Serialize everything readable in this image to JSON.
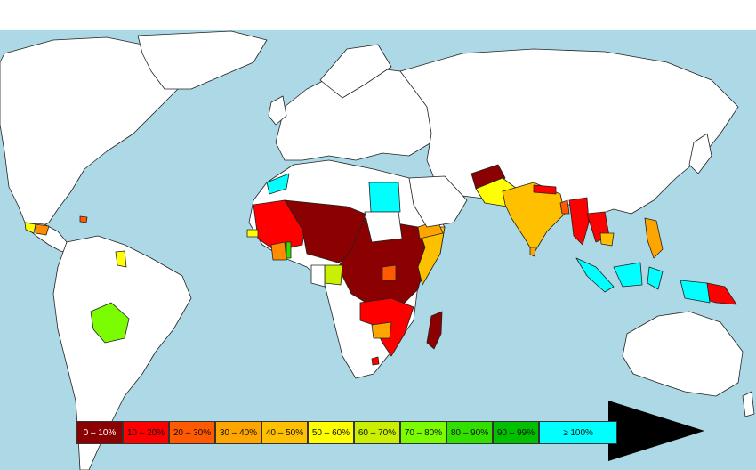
{
  "map": {
    "ocean_color": "#add8e6",
    "land_color": "#ffffff",
    "border_color": "#222222"
  },
  "legend": {
    "items": [
      {
        "label": "0 – 10%",
        "color": "#8b0000"
      },
      {
        "label": "10 – 20%",
        "color": "#ff0000"
      },
      {
        "label": "20 – 30%",
        "color": "#ff5a00"
      },
      {
        "label": "30 – 40%",
        "color": "#ffa500"
      },
      {
        "label": "40 – 50%",
        "color": "#ffc000"
      },
      {
        "label": "50 – 60%",
        "color": "#ffff00"
      },
      {
        "label": "60 – 70%",
        "color": "#c8f000"
      },
      {
        "label": "70 – 80%",
        "color": "#7cfc00"
      },
      {
        "label": "80 – 90%",
        "color": "#32e000"
      },
      {
        "label": "90 – 99%",
        "color": "#00c000"
      },
      {
        "label": "≥ 100%",
        "color": "#00ffff"
      }
    ],
    "arrow_icon": "arrow-right-icon"
  }
}
